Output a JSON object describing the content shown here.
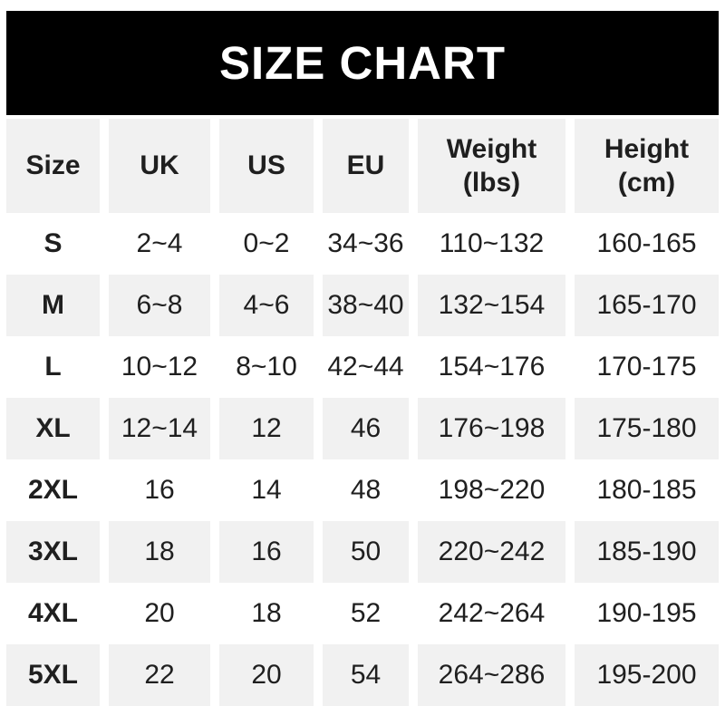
{
  "colors": {
    "page_bg": "#ffffff",
    "banner_bg": "#000000",
    "banner_text": "#ffffff",
    "shaded_row_bg": "#f1f1f1",
    "cell_text": "#1f1f1f"
  },
  "chart_data": {
    "type": "table",
    "title": "SIZE CHART",
    "columns": [
      {
        "label": "Size",
        "sub": ""
      },
      {
        "label": "UK",
        "sub": ""
      },
      {
        "label": "US",
        "sub": ""
      },
      {
        "label": "EU",
        "sub": ""
      },
      {
        "label": "Weight",
        "sub": "(lbs)"
      },
      {
        "label": "Height",
        "sub": "(cm)"
      }
    ],
    "rows": [
      [
        "S",
        "2~4",
        "0~2",
        "34~36",
        "110~132",
        "160-165"
      ],
      [
        "M",
        "6~8",
        "4~6",
        "38~40",
        "132~154",
        "165-170"
      ],
      [
        "L",
        "10~12",
        "8~10",
        "42~44",
        "154~176",
        "170-175"
      ],
      [
        "XL",
        "12~14",
        "12",
        "46",
        "176~198",
        "175-180"
      ],
      [
        "2XL",
        "16",
        "14",
        "48",
        "198~220",
        "180-185"
      ],
      [
        "3XL",
        "18",
        "16",
        "50",
        "220~242",
        "185-190"
      ],
      [
        "4XL",
        "20",
        "18",
        "52",
        "242~264",
        "190-195"
      ],
      [
        "5XL",
        "22",
        "20",
        "54",
        "264~286",
        "195-200"
      ]
    ],
    "layout_hints": {
      "header_shaded": true,
      "zebra_shaded_rows": [
        "M",
        "XL",
        "3XL",
        "5XL"
      ],
      "range_separator_weight": "~",
      "range_separator_height": "-"
    }
  }
}
